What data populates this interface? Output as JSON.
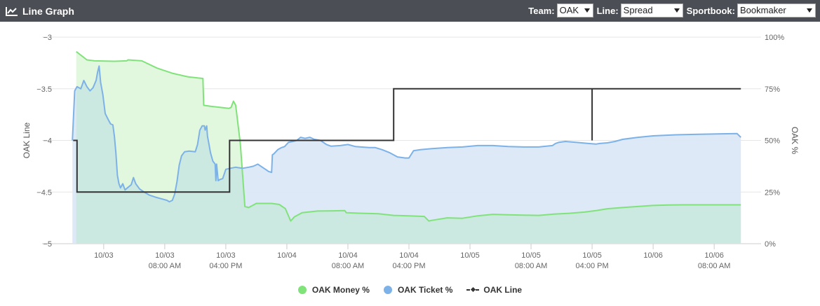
{
  "header": {
    "title": "Line Graph",
    "icon": "line-chart-icon",
    "team_label": "Team:",
    "team_value": "OAK",
    "line_label": "Line:",
    "line_value": "Spread",
    "sportsbook_label": "Sportbook:",
    "sportsbook_value": "Bookmaker"
  },
  "colors": {
    "header_bg": "#4b4f55",
    "money": "#80e37a",
    "money_fill": "#e2f8de",
    "ticket": "#7db2e8",
    "ticket_fill": "#dbe8f7",
    "overlap_fill": "#cbe9e0",
    "line": "#333333",
    "grid": "#e6e6e6"
  },
  "legend": {
    "money": "OAK Money %",
    "ticket": "OAK Ticket %",
    "line": "OAK Line"
  },
  "chart_data": {
    "type": "line",
    "x_unit": "hours since 10/03 00:00",
    "xlim": [
      -5.5,
      85.5
    ],
    "x_ticks": [
      {
        "x": 0,
        "label": [
          "10/03"
        ]
      },
      {
        "x": 8,
        "label": [
          "10/03",
          "08:00 AM"
        ]
      },
      {
        "x": 16,
        "label": [
          "10/03",
          "04:00 PM"
        ]
      },
      {
        "x": 24,
        "label": [
          "10/04"
        ]
      },
      {
        "x": 32,
        "label": [
          "10/04",
          "08:00 AM"
        ]
      },
      {
        "x": 40,
        "label": [
          "10/04",
          "04:00 PM"
        ]
      },
      {
        "x": 48,
        "label": [
          "10/05"
        ]
      },
      {
        "x": 56,
        "label": [
          "10/05",
          "08:00 AM"
        ]
      },
      {
        "x": 64,
        "label": [
          "10/05",
          "04:00 PM"
        ]
      },
      {
        "x": 72,
        "label": [
          "10/06"
        ]
      },
      {
        "x": 80,
        "label": [
          "10/06",
          "08:00 AM"
        ]
      }
    ],
    "y_left": {
      "title": "OAK Line",
      "range": [
        -5,
        -3
      ],
      "ticks": [
        -3,
        -3.5,
        -4,
        -4.5,
        -5
      ],
      "tick_labels": [
        "−3",
        "−3.5",
        "−4",
        "−4.5",
        "−5"
      ]
    },
    "y_right": {
      "title": "OAK %",
      "range": [
        0,
        100
      ],
      "ticks": [
        100,
        75,
        50,
        25,
        0
      ],
      "tick_labels": [
        "100%",
        "75%",
        "50%",
        "25%",
        "0%"
      ]
    },
    "series": [
      {
        "name": "OAK Money %",
        "axis": "right",
        "points": [
          [
            -3.6,
            93
          ],
          [
            -2.2,
            89
          ],
          [
            -1.2,
            88.5
          ],
          [
            1.4,
            88.3
          ],
          [
            3.0,
            88.5
          ],
          [
            3.2,
            89
          ],
          [
            5.0,
            88.5
          ],
          [
            7.0,
            85
          ],
          [
            9.0,
            82.5
          ],
          [
            11.0,
            80.8
          ],
          [
            12.4,
            80.2
          ],
          [
            13.0,
            80
          ],
          [
            13.1,
            67
          ],
          [
            14.0,
            66.5
          ],
          [
            16.4,
            65.5
          ],
          [
            16.7,
            66
          ],
          [
            17.0,
            69
          ],
          [
            17.3,
            67
          ],
          [
            17.9,
            48.5
          ],
          [
            18.5,
            18
          ],
          [
            19.0,
            17.5
          ],
          [
            20.0,
            19.5
          ],
          [
            22.0,
            19.5
          ],
          [
            23.0,
            19
          ],
          [
            23.8,
            17
          ],
          [
            24.5,
            11
          ],
          [
            25.0,
            13
          ],
          [
            26.0,
            15
          ],
          [
            28.0,
            15.8
          ],
          [
            30.0,
            15.9
          ],
          [
            31.6,
            16
          ],
          [
            31.8,
            15
          ],
          [
            33.0,
            14.8
          ],
          [
            36.0,
            14.5
          ],
          [
            38.0,
            13.7
          ],
          [
            40.0,
            13.5
          ],
          [
            42.0,
            13.2
          ],
          [
            42.6,
            11
          ],
          [
            43.0,
            11.3
          ],
          [
            45.0,
            12.5
          ],
          [
            47.0,
            12.3
          ],
          [
            49.0,
            13.5
          ],
          [
            51.0,
            14.2
          ],
          [
            53.0,
            14
          ],
          [
            55.0,
            13.8
          ],
          [
            57.0,
            13.7
          ],
          [
            59.0,
            14.3
          ],
          [
            61.0,
            14.7
          ],
          [
            63.0,
            15.3
          ],
          [
            64.5,
            16
          ],
          [
            65.0,
            16.3
          ],
          [
            66.0,
            16.9
          ],
          [
            68.0,
            17.5
          ],
          [
            70.0,
            18
          ],
          [
            72.0,
            18.5
          ],
          [
            74.0,
            18.7
          ],
          [
            76.0,
            18.8
          ],
          [
            78.0,
            18.8
          ],
          [
            81.0,
            18.8
          ],
          [
            83.5,
            18.8
          ]
        ]
      },
      {
        "name": "OAK Ticket %",
        "axis": "right",
        "points": [
          [
            -4.1,
            50
          ],
          [
            -4.0,
            58
          ],
          [
            -3.8,
            74
          ],
          [
            -3.5,
            76
          ],
          [
            -3.0,
            75
          ],
          [
            -2.6,
            79
          ],
          [
            -2.2,
            76
          ],
          [
            -1.8,
            74
          ],
          [
            -1.4,
            75.5
          ],
          [
            -1.0,
            79
          ],
          [
            -0.8,
            83
          ],
          [
            -0.6,
            86
          ],
          [
            -0.4,
            78
          ],
          [
            -0.1,
            72
          ],
          [
            0.2,
            63
          ],
          [
            0.6,
            60
          ],
          [
            0.9,
            58
          ],
          [
            1.2,
            57.5
          ],
          [
            1.4,
            52
          ],
          [
            1.6,
            44
          ],
          [
            1.8,
            33
          ],
          [
            2.0,
            29
          ],
          [
            2.2,
            27
          ],
          [
            2.5,
            29
          ],
          [
            2.8,
            26
          ],
          [
            3.1,
            27
          ],
          [
            3.6,
            28.5
          ],
          [
            3.9,
            32
          ],
          [
            4.2,
            29
          ],
          [
            4.7,
            26.5
          ],
          [
            5.3,
            25
          ],
          [
            6.0,
            23.5
          ],
          [
            6.8,
            22.5
          ],
          [
            7.5,
            21.8
          ],
          [
            8.3,
            21
          ],
          [
            8.6,
            20.3
          ],
          [
            9.0,
            21
          ],
          [
            9.3,
            24
          ],
          [
            9.6,
            30
          ],
          [
            9.9,
            38
          ],
          [
            10.2,
            42.5
          ],
          [
            10.6,
            44.5
          ],
          [
            11.2,
            44.8
          ],
          [
            12.0,
            44.5
          ],
          [
            12.3,
            48
          ],
          [
            12.6,
            55
          ],
          [
            12.9,
            57
          ],
          [
            13.2,
            57
          ],
          [
            13.3,
            55
          ],
          [
            13.5,
            57
          ],
          [
            13.6,
            52
          ],
          [
            13.8,
            48
          ],
          [
            14.0,
            44
          ],
          [
            14.3,
            40
          ],
          [
            14.6,
            38.5
          ],
          [
            14.7,
            30.5
          ],
          [
            14.8,
            38.5
          ],
          [
            15.0,
            30.5
          ],
          [
            15.2,
            31
          ],
          [
            15.6,
            31.5
          ],
          [
            16.0,
            36
          ],
          [
            16.6,
            36.5
          ],
          [
            17.3,
            37
          ],
          [
            17.6,
            36.8
          ],
          [
            18.2,
            36.5
          ],
          [
            19.0,
            37
          ],
          [
            19.6,
            37.5
          ],
          [
            20.2,
            38.5
          ],
          [
            20.6,
            37.5
          ],
          [
            21.2,
            36
          ],
          [
            21.6,
            35
          ],
          [
            22.0,
            34.5
          ],
          [
            22.1,
            43
          ],
          [
            22.3,
            43.5
          ],
          [
            22.8,
            45.5
          ],
          [
            23.3,
            46.5
          ],
          [
            23.7,
            47
          ],
          [
            24.2,
            49
          ],
          [
            24.8,
            49.5
          ],
          [
            25.3,
            50
          ],
          [
            25.8,
            51.5
          ],
          [
            26.4,
            51
          ],
          [
            27.0,
            51.5
          ],
          [
            27.6,
            50.5
          ],
          [
            28.4,
            50
          ],
          [
            29.2,
            48
          ],
          [
            29.8,
            47.2
          ],
          [
            31.0,
            47.5
          ],
          [
            32.0,
            48
          ],
          [
            33.0,
            47
          ],
          [
            33.7,
            46.8
          ],
          [
            34.8,
            46.5
          ],
          [
            35.6,
            46.5
          ],
          [
            36.5,
            45.5
          ],
          [
            37.5,
            44
          ],
          [
            38.5,
            42
          ],
          [
            39.5,
            41.5
          ],
          [
            40.0,
            41.5
          ],
          [
            40.6,
            45
          ],
          [
            41.5,
            45.5
          ],
          [
            43.0,
            46
          ],
          [
            45.0,
            46.5
          ],
          [
            47.0,
            46.8
          ],
          [
            49.0,
            47.5
          ],
          [
            51.0,
            47.5
          ],
          [
            53.0,
            47
          ],
          [
            55.0,
            46.8
          ],
          [
            57.0,
            46.8
          ],
          [
            58.8,
            47.5
          ],
          [
            59.2,
            48.5
          ],
          [
            59.6,
            49
          ],
          [
            60.5,
            49.5
          ],
          [
            62.0,
            49
          ],
          [
            63.5,
            48.5
          ],
          [
            64.5,
            48.2
          ],
          [
            65.0,
            48.5
          ],
          [
            66.0,
            48.8
          ],
          [
            67.0,
            49.5
          ],
          [
            68.0,
            50.5
          ],
          [
            70.0,
            51.5
          ],
          [
            72.0,
            52.2
          ],
          [
            75.0,
            52.7
          ],
          [
            78.0,
            53
          ],
          [
            81.0,
            53.2
          ],
          [
            83.0,
            53.3
          ],
          [
            83.5,
            51.5
          ]
        ]
      },
      {
        "name": "OAK Line",
        "axis": "left",
        "step": true,
        "points": [
          [
            -4.0,
            -4
          ],
          [
            -3.5,
            -4
          ],
          [
            -3.5,
            -4.5
          ],
          [
            16.5,
            -4.5
          ],
          [
            16.5,
            -4
          ],
          [
            38.0,
            -4
          ],
          [
            38.0,
            -3.5
          ],
          [
            64.0,
            -3.5
          ],
          [
            64.0,
            -4
          ],
          [
            64.0,
            -3.5
          ],
          [
            83.5,
            -3.5
          ]
        ]
      }
    ]
  }
}
